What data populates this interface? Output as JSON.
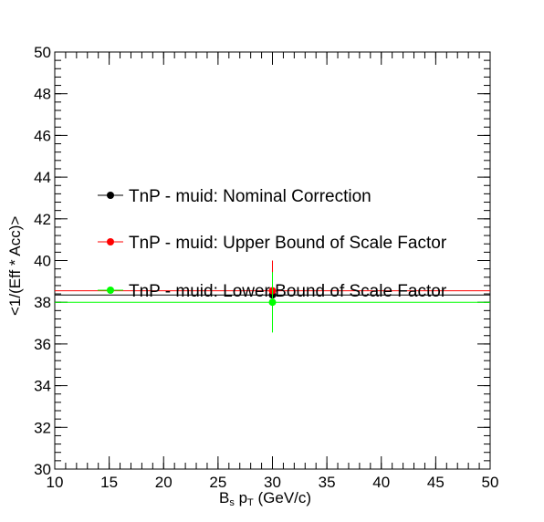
{
  "chart_data": {
    "type": "scatter",
    "title": "",
    "xlabel": {
      "main": "B",
      "sub1": "s",
      "mid": " p",
      "sub2": "T",
      "tail": " (GeV/c)"
    },
    "ylabel": "<1/(Eff * Acc)>",
    "xlim": [
      10,
      50
    ],
    "ylim": [
      30,
      50
    ],
    "x_ticks": [
      "10",
      "15",
      "20",
      "25",
      "30",
      "35",
      "40",
      "45",
      "50"
    ],
    "y_ticks": [
      "30",
      "32",
      "34",
      "36",
      "38",
      "40",
      "42",
      "44",
      "46",
      "48",
      "50"
    ],
    "grid": false,
    "legend_position": "center-left",
    "series": [
      {
        "name": "TnP - muid: Nominal Correction",
        "color": "#000000",
        "x": 30,
        "y": 38.35,
        "x_err": 20,
        "y_err": 0.85
      },
      {
        "name": "TnP - muid: Upper Bound of Scale Factor",
        "color": "#ff0000",
        "x": 30,
        "y": 38.55,
        "x_err": 20,
        "y_err": 1.45
      },
      {
        "name": "TnP - muid: Lower Bound of Scale Factor",
        "color": "#00ff00",
        "x": 30,
        "y": 38.0,
        "x_err": 20,
        "y_err": 1.45
      }
    ]
  }
}
